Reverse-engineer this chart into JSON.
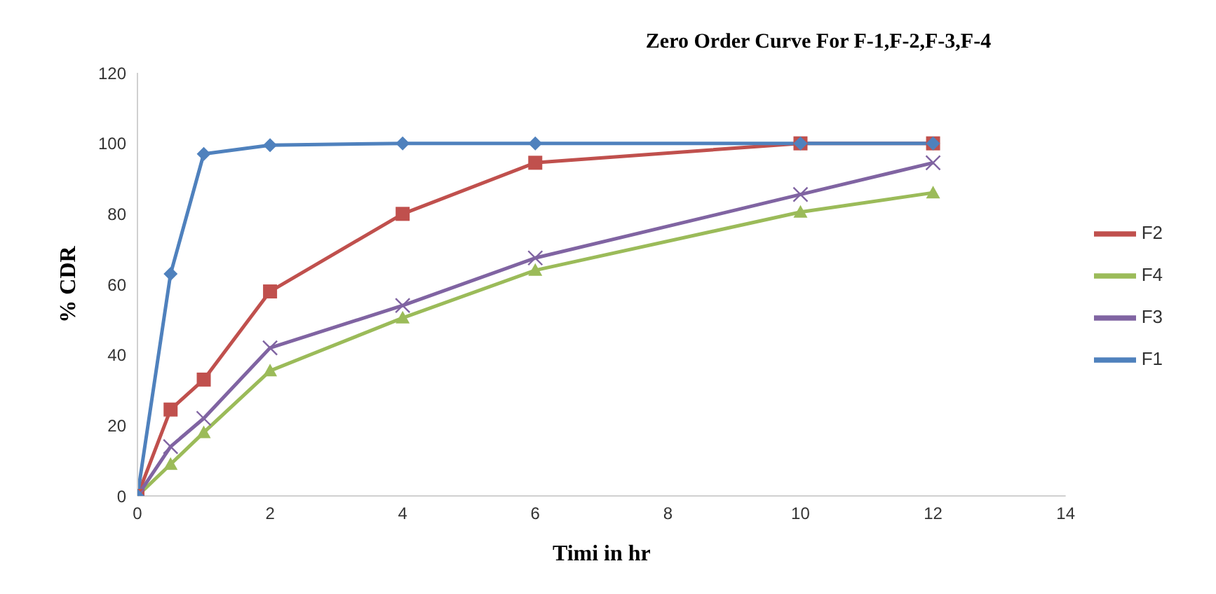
{
  "chart_data": {
    "type": "line",
    "title": "Zero Order Curve For F-1,F-2,F-3,F-4",
    "xlabel": "Timi in hr",
    "ylabel": "% CDR",
    "x": [
      0,
      0.5,
      1,
      2,
      4,
      6,
      10,
      12
    ],
    "series": [
      {
        "name": "F2",
        "color": "#c0504d",
        "marker": "square",
        "values": [
          0,
          24.5,
          33,
          58,
          80,
          94.5,
          100,
          100
        ]
      },
      {
        "name": "F4",
        "color": "#9bbb59",
        "marker": "triangle",
        "values": [
          0,
          9,
          18,
          35.5,
          50.5,
          64,
          80.5,
          86
        ]
      },
      {
        "name": "F3",
        "color": "#8064a2",
        "marker": "cross",
        "values": [
          0,
          14,
          22,
          42,
          54,
          67.5,
          85.5,
          94.5
        ]
      },
      {
        "name": "F1",
        "color": "#4f81bd",
        "marker": "diamond",
        "values": [
          0,
          63,
          97,
          99.5,
          100,
          100,
          100,
          100
        ]
      }
    ],
    "xlim": [
      0,
      14
    ],
    "xticks": [
      0,
      2,
      4,
      6,
      8,
      10,
      12,
      14
    ],
    "ylim": [
      0,
      120
    ],
    "yticks": [
      0,
      20,
      40,
      60,
      80,
      100,
      120
    ],
    "grid": false,
    "legend": "right",
    "line_style": "solid"
  }
}
